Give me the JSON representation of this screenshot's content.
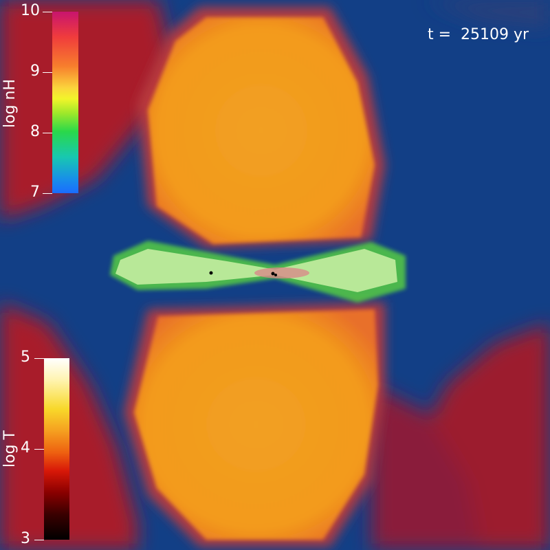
{
  "time": {
    "label": "t =  25109 yr"
  },
  "colorbar_nh": {
    "title": "log nH",
    "ticks": [
      "10",
      "9",
      "8",
      "7"
    ],
    "colors": [
      "#c8146e",
      "#f03c3c",
      "#f77e2d",
      "#fbd43c",
      "#f2f52a",
      "#9ee82a",
      "#2ad84a",
      "#18c8b0",
      "#1890e8",
      "#1a6cff"
    ]
  },
  "colorbar_t": {
    "title": "log T",
    "ticks": [
      "5",
      "4",
      "3"
    ],
    "colors": [
      "#ffffff",
      "#fff4b0",
      "#f8d82a",
      "#f5a020",
      "#ee6010",
      "#d81808",
      "#8a0000",
      "#3a0000",
      "#000000"
    ]
  },
  "scene_colors": {
    "background_blue": "#123f86",
    "outer_red": "#a81c2a",
    "lobe_orange": "#f39a1a",
    "disk_green": "#7fe84a"
  }
}
